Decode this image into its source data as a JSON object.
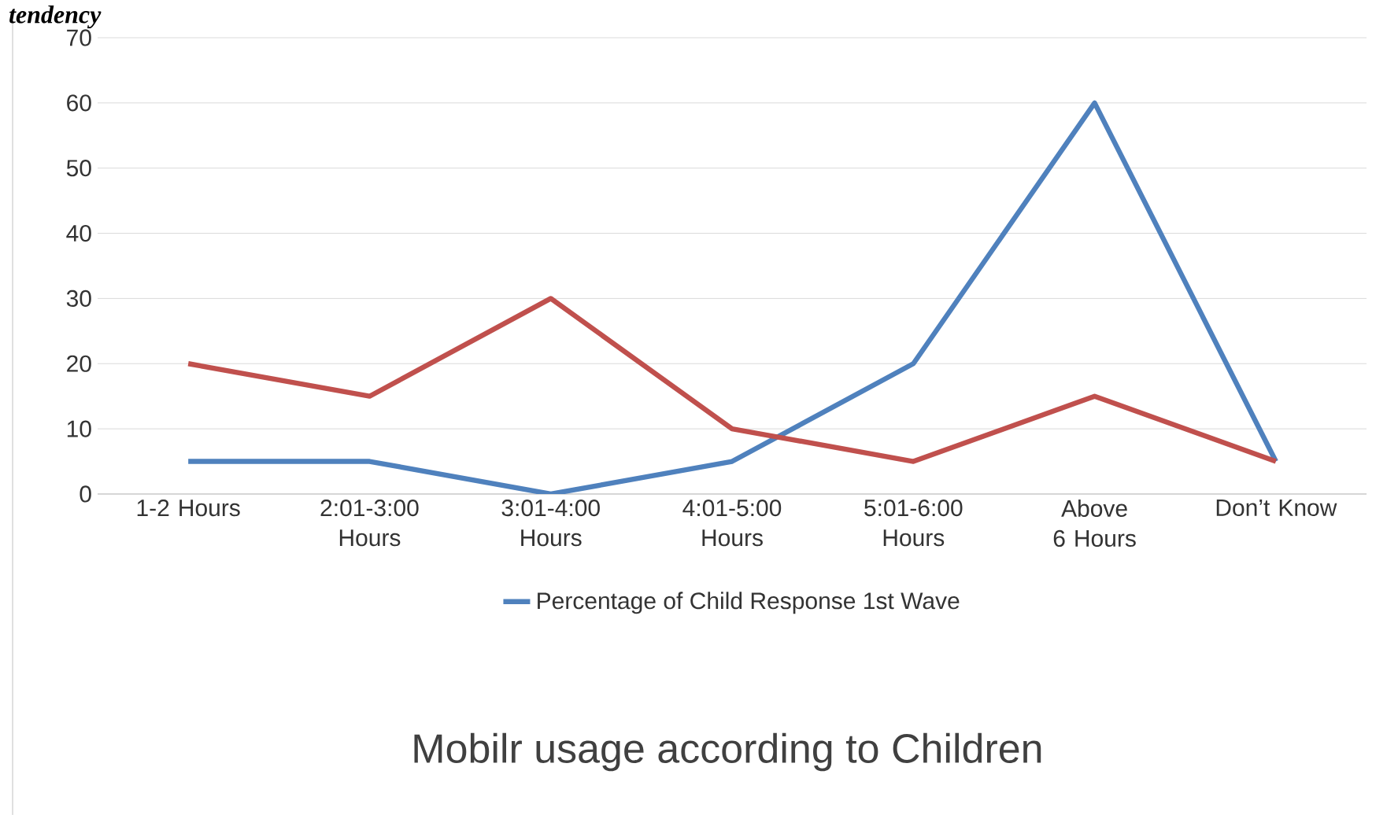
{
  "chart_data": {
    "type": "line",
    "title": "Mobilr usage according to Children",
    "annotations": [
      "tendency"
    ],
    "categories": [
      "1-2 Hours",
      "2:01-3:00 Hours",
      "3:01-4:00 Hours",
      "4:01-5:00 Hours",
      "5:01-6:00 Hours",
      "Above 6 Hours",
      "Don’t Know"
    ],
    "series": [
      {
        "name": "Percentage of Child Response 1st Wave",
        "color": "#4f81bd",
        "values": [
          5,
          5,
          0,
          5,
          20,
          60,
          5
        ]
      },
      {
        "color": "#c0504d",
        "values": [
          20,
          15,
          30,
          10,
          5,
          15,
          5
        ]
      }
    ],
    "ylim": [
      0,
      70
    ],
    "yticks": [
      0,
      10,
      20,
      30,
      40,
      50,
      60,
      70
    ],
    "grid": "y",
    "legend": "bottom",
    "marker": "none",
    "line_style": "solid"
  }
}
